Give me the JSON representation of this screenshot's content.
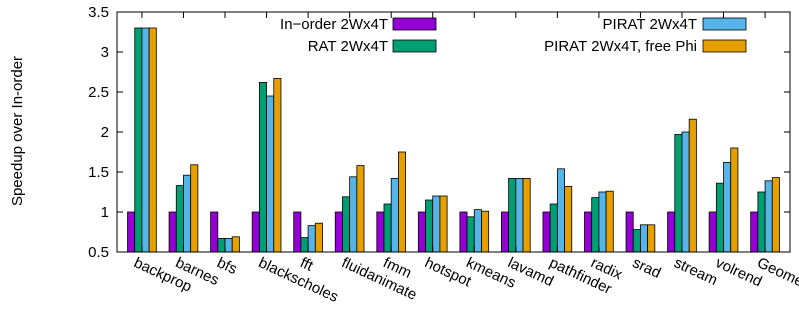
{
  "chart_data": {
    "type": "bar",
    "title": "",
    "xlabel": "",
    "ylabel": "Speedup over In-order",
    "ylim": [
      0.5,
      3.5
    ],
    "yticks": [
      "0.5",
      "1",
      "1.5",
      "2",
      "2.5",
      "3",
      "3.5"
    ],
    "categories": [
      "backprop",
      "barnes",
      "bfs",
      "blackscholes",
      "fft",
      "fluidanimate",
      "fmm",
      "hotspot",
      "kmeans",
      "lavamd",
      "pathfinder",
      "radix",
      "srad",
      "stream",
      "volrend",
      "Geomean"
    ],
    "series": [
      {
        "name": "In−order 2Wx4T",
        "color": "#9400d3",
        "values": [
          1.0,
          1.0,
          1.0,
          1.0,
          1.0,
          1.0,
          1.0,
          1.0,
          1.0,
          1.0,
          1.0,
          1.0,
          1.0,
          1.0,
          1.0,
          1.0
        ]
      },
      {
        "name": "RAT 2Wx4T",
        "color": "#009e73",
        "values": [
          3.3,
          1.33,
          0.67,
          2.62,
          0.68,
          1.19,
          1.1,
          1.15,
          0.94,
          1.42,
          1.1,
          1.18,
          0.78,
          1.97,
          1.36,
          1.25
        ]
      },
      {
        "name": "PIRAT 2Wx4T",
        "color": "#56b4e9",
        "values": [
          3.3,
          1.46,
          0.67,
          2.45,
          0.83,
          1.44,
          1.42,
          1.2,
          1.03,
          1.42,
          1.54,
          1.25,
          0.84,
          2.0,
          1.62,
          1.39
        ]
      },
      {
        "name": "PIRAT 2Wx4T, free Phi",
        "color": "#e69f00",
        "values": [
          3.3,
          1.59,
          0.69,
          2.67,
          0.86,
          1.58,
          1.75,
          1.2,
          1.01,
          1.42,
          1.32,
          1.26,
          0.84,
          2.16,
          1.8,
          1.43
        ]
      }
    ],
    "legend_position": "top",
    "grid": false
  }
}
